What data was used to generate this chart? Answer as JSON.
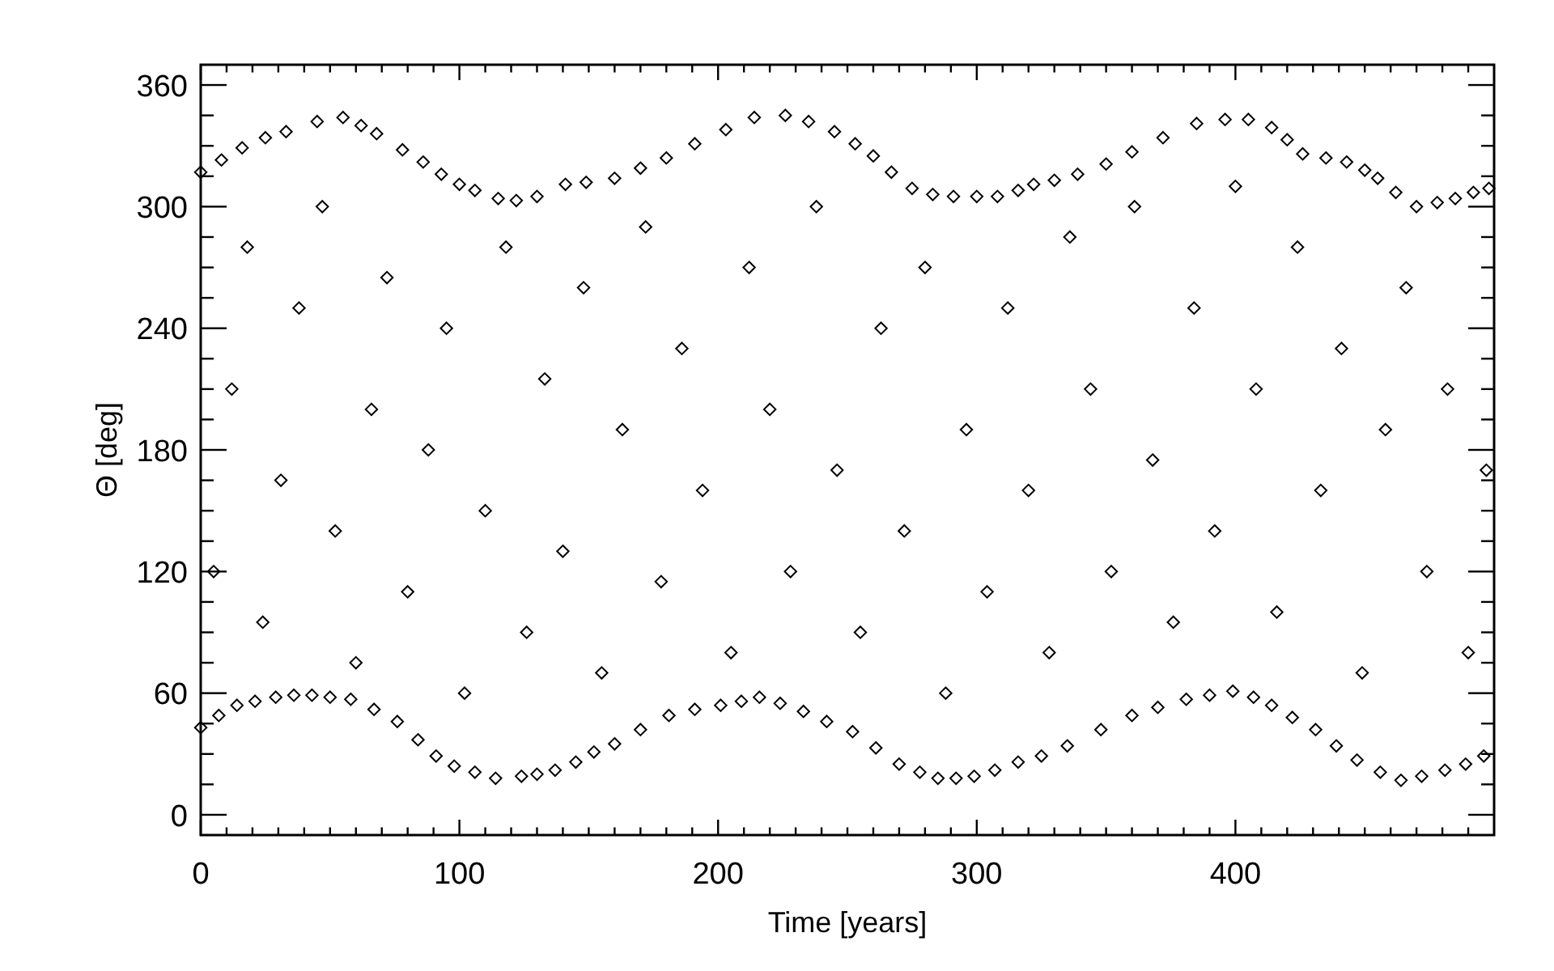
{
  "chart_data": {
    "type": "scatter",
    "xlabel": "Time [years]",
    "ylabel": "Θ [deg]",
    "xlim": [
      0,
      500
    ],
    "ylim": [
      -10,
      370
    ],
    "xticks": [
      0,
      {
        "value": 10,
        "label": null
      },
      {
        "value": 20,
        "label": null
      },
      {
        "value": 30,
        "label": null
      },
      {
        "value": 40,
        "label": null
      },
      {
        "value": 50,
        "label": null
      },
      {
        "value": 60,
        "label": null
      },
      {
        "value": 70,
        "label": null
      },
      {
        "value": 80,
        "label": null
      },
      {
        "value": 90,
        "label": null
      },
      100,
      {
        "value": 110,
        "label": null
      },
      {
        "value": 120,
        "label": null
      },
      {
        "value": 130,
        "label": null
      },
      {
        "value": 140,
        "label": null
      },
      {
        "value": 150,
        "label": null
      },
      {
        "value": 160,
        "label": null
      },
      {
        "value": 170,
        "label": null
      },
      {
        "value": 180,
        "label": null
      },
      {
        "value": 190,
        "label": null
      },
      200,
      {
        "value": 210,
        "label": null
      },
      {
        "value": 220,
        "label": null
      },
      {
        "value": 230,
        "label": null
      },
      {
        "value": 240,
        "label": null
      },
      {
        "value": 250,
        "label": null
      },
      {
        "value": 260,
        "label": null
      },
      {
        "value": 270,
        "label": null
      },
      {
        "value": 280,
        "label": null
      },
      {
        "value": 290,
        "label": null
      },
      300,
      {
        "value": 310,
        "label": null
      },
      {
        "value": 320,
        "label": null
      },
      {
        "value": 330,
        "label": null
      },
      {
        "value": 340,
        "label": null
      },
      {
        "value": 350,
        "label": null
      },
      {
        "value": 360,
        "label": null
      },
      {
        "value": 370,
        "label": null
      },
      {
        "value": 380,
        "label": null
      },
      {
        "value": 390,
        "label": null
      },
      400,
      {
        "value": 410,
        "label": null
      },
      {
        "value": 420,
        "label": null
      },
      {
        "value": 430,
        "label": null
      },
      {
        "value": 440,
        "label": null
      },
      {
        "value": 450,
        "label": null
      },
      {
        "value": 460,
        "label": null
      },
      {
        "value": 470,
        "label": null
      },
      {
        "value": 480,
        "label": null
      },
      {
        "value": 490,
        "label": null
      }
    ],
    "yticks": [
      0,
      {
        "value": 15,
        "label": null
      },
      {
        "value": 30,
        "label": null
      },
      {
        "value": 45,
        "label": null
      },
      60,
      {
        "value": 75,
        "label": null
      },
      {
        "value": 90,
        "label": null
      },
      {
        "value": 105,
        "label": null
      },
      120,
      {
        "value": 135,
        "label": null
      },
      {
        "value": 150,
        "label": null
      },
      {
        "value": 165,
        "label": null
      },
      180,
      {
        "value": 195,
        "label": null
      },
      {
        "value": 210,
        "label": null
      },
      {
        "value": 225,
        "label": null
      },
      240,
      {
        "value": 255,
        "label": null
      },
      {
        "value": 270,
        "label": null
      },
      {
        "value": 285,
        "label": null
      },
      300,
      {
        "value": 315,
        "label": null
      },
      {
        "value": 330,
        "label": null
      },
      {
        "value": 345,
        "label": null
      },
      360
    ],
    "marker": "diamond",
    "color": "#000000",
    "x": [
      0,
      8,
      16,
      25,
      33,
      45,
      55,
      62,
      68,
      78,
      86,
      93,
      100,
      106,
      115,
      122,
      130,
      141,
      149,
      160,
      170,
      180,
      191,
      203,
      214,
      226,
      235,
      245,
      253,
      260,
      267,
      275,
      283,
      291,
      300,
      308,
      316,
      322,
      330,
      339,
      350,
      360,
      372,
      385,
      396,
      405,
      414,
      420,
      426,
      435,
      443,
      450,
      455,
      462,
      470,
      478,
      485,
      492,
      498,
      0,
      7,
      14,
      21,
      29,
      36,
      43,
      50,
      58,
      67,
      76,
      84,
      91,
      98,
      106,
      114,
      124,
      130,
      137,
      145,
      152,
      160,
      170,
      181,
      191,
      201,
      209,
      216,
      224,
      233,
      242,
      252,
      261,
      270,
      278,
      285,
      292,
      299,
      307,
      316,
      325,
      335,
      348,
      360,
      370,
      381,
      390,
      399,
      407,
      414,
      422,
      431,
      439,
      447,
      456,
      464,
      472,
      481,
      489,
      496,
      5,
      12,
      18,
      24,
      31,
      38,
      47,
      52,
      60,
      66,
      72,
      80,
      88,
      95,
      102,
      110,
      118,
      126,
      133,
      140,
      148,
      155,
      163,
      172,
      178,
      186,
      194,
      205,
      212,
      220,
      228,
      238,
      246,
      255,
      263,
      272,
      280,
      288,
      296,
      304,
      312,
      320,
      328,
      336,
      344,
      352,
      361,
      368,
      376,
      384,
      392,
      400,
      408,
      416,
      424,
      433,
      441,
      449,
      458,
      466,
      474,
      482,
      490,
      497
    ],
    "values": [
      317,
      323,
      329,
      334,
      337,
      342,
      344,
      340,
      336,
      328,
      322,
      316,
      311,
      308,
      304,
      303,
      305,
      311,
      312,
      314,
      319,
      324,
      331,
      338,
      344,
      345,
      342,
      337,
      331,
      325,
      317,
      309,
      306,
      305,
      305,
      305,
      308,
      311,
      313,
      316,
      321,
      327,
      334,
      341,
      343,
      343,
      339,
      333,
      326,
      324,
      322,
      318,
      314,
      307,
      300,
      302,
      304,
      307,
      309,
      43,
      49,
      54,
      56,
      58,
      59,
      59,
      58,
      57,
      52,
      46,
      37,
      29,
      24,
      21,
      18,
      19,
      20,
      22,
      26,
      31,
      35,
      42,
      49,
      52,
      54,
      56,
      58,
      55,
      51,
      46,
      41,
      33,
      25,
      21,
      18,
      18,
      19,
      22,
      26,
      29,
      34,
      42,
      49,
      53,
      57,
      59,
      61,
      58,
      54,
      48,
      42,
      34,
      27,
      21,
      17,
      19,
      22,
      25,
      29,
      120,
      210,
      280,
      95,
      165,
      250,
      300,
      140,
      75,
      200,
      265,
      110,
      180,
      240,
      60,
      150,
      280,
      90,
      215,
      130,
      260,
      70,
      190,
      290,
      115,
      230,
      160,
      80,
      270,
      200,
      120,
      300,
      170,
      90,
      240,
      140,
      270,
      60,
      190,
      110,
      250,
      160,
      80,
      285,
      210,
      120,
      300,
      175,
      95,
      250,
      140,
      310,
      210,
      100,
      280,
      160,
      230,
      70,
      190,
      260,
      120,
      210,
      80,
      170
    ]
  }
}
